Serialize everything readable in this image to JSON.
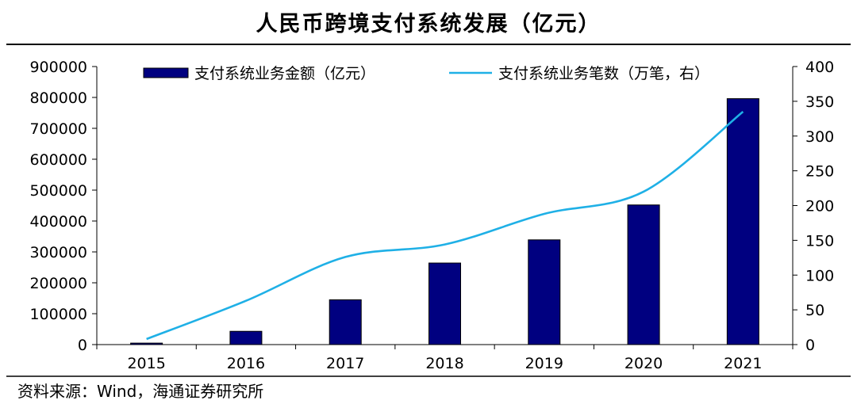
{
  "chart_data": {
    "type": "bar+line",
    "title": "人民币跨境支付系统发展（亿元）",
    "categories": [
      "2015",
      "2016",
      "2017",
      "2018",
      "2019",
      "2020",
      "2021"
    ],
    "series": [
      {
        "name": "支付系统业务金额（亿元）",
        "kind": "bar",
        "axis": "left",
        "color": "#000080",
        "values": [
          4800,
          43000,
          145000,
          264000,
          339000,
          452000,
          796000
        ]
      },
      {
        "name": "支付系统业务笔数（万笔，右）",
        "kind": "line",
        "axis": "right",
        "color": "#1fb0e6",
        "values": [
          8,
          63,
          126,
          144,
          188,
          220,
          335
        ]
      }
    ],
    "left_axis": {
      "min": 0,
      "max": 900000,
      "step": 100000,
      "ticks": [
        "0",
        "100000",
        "200000",
        "300000",
        "400000",
        "500000",
        "600000",
        "700000",
        "800000",
        "900000"
      ]
    },
    "right_axis": {
      "min": 0,
      "max": 400,
      "step": 50,
      "ticks": [
        "0",
        "50",
        "100",
        "150",
        "200",
        "250",
        "300",
        "350",
        "400"
      ]
    },
    "legend_position": "top"
  },
  "source": "资料来源：Wind，海通证券研究所"
}
